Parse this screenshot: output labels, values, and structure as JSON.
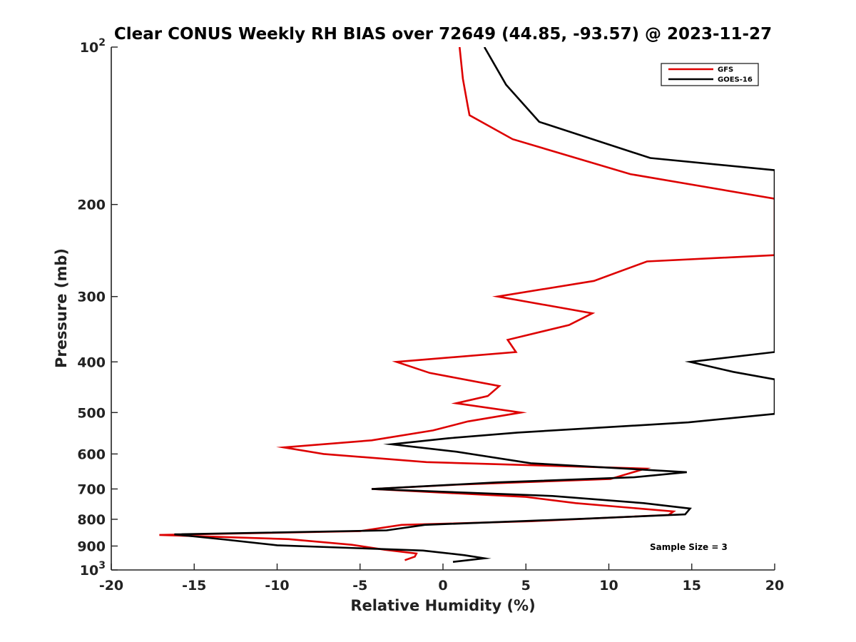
{
  "chart_data": {
    "type": "line",
    "title": "Clear CONUS Weekly RH BIAS over 72649 (44.85, -93.57) @ 2023-11-27",
    "xlabel": "Relative Humidity (%)",
    "ylabel": "Pressure (mb)",
    "xlim": [
      -20,
      20
    ],
    "ylim": [
      100,
      1000
    ],
    "y_scale": "log",
    "y_reversed": true,
    "grid": false,
    "legend_position": "top-right",
    "x_ticks": [
      {
        "value": -20,
        "label": "-20"
      },
      {
        "value": -15,
        "label": "-15"
      },
      {
        "value": -10,
        "label": "-10"
      },
      {
        "value": -5,
        "label": "-5"
      },
      {
        "value": 0,
        "label": "0"
      },
      {
        "value": 5,
        "label": "5"
      },
      {
        "value": 10,
        "label": "10"
      },
      {
        "value": 15,
        "label": "15"
      },
      {
        "value": 20,
        "label": "20"
      }
    ],
    "y_ticks": [
      {
        "value": 100,
        "base": "10",
        "exp": "2"
      },
      {
        "value": 200,
        "base": "200",
        "exp": ""
      },
      {
        "value": 300,
        "base": "300",
        "exp": ""
      },
      {
        "value": 400,
        "base": "400",
        "exp": ""
      },
      {
        "value": 500,
        "base": "500",
        "exp": ""
      },
      {
        "value": 600,
        "base": "600",
        "exp": ""
      },
      {
        "value": 700,
        "base": "700",
        "exp": ""
      },
      {
        "value": 800,
        "base": "800",
        "exp": ""
      },
      {
        "value": 900,
        "base": "900",
        "exp": ""
      },
      {
        "value": 1000,
        "base": "10",
        "exp": "3"
      }
    ],
    "series": [
      {
        "name": "GFS",
        "color": "#dd0000",
        "points": [
          [
            1.0,
            100
          ],
          [
            1.2,
            115
          ],
          [
            1.5,
            130
          ],
          [
            1.6,
            135
          ],
          [
            4.2,
            150
          ],
          [
            11.3,
            175
          ],
          [
            20.0,
            195
          ],
          [
            20.0,
            250
          ],
          [
            12.3,
            257
          ],
          [
            9.1,
            280
          ],
          [
            3.3,
            300
          ],
          [
            9.0,
            323
          ],
          [
            7.6,
            340
          ],
          [
            3.9,
            363
          ],
          [
            4.4,
            383
          ],
          [
            -2.8,
            400
          ],
          [
            -0.8,
            420
          ],
          [
            3.4,
            445
          ],
          [
            2.7,
            465
          ],
          [
            0.8,
            480
          ],
          [
            4.7,
            500
          ],
          [
            1.5,
            520
          ],
          [
            -0.6,
            541
          ],
          [
            -4.3,
            565
          ],
          [
            -9.6,
            583
          ],
          [
            -7.2,
            600
          ],
          [
            -1.0,
            622
          ],
          [
            12.2,
            640
          ],
          [
            10.1,
            670
          ],
          [
            0.8,
            687
          ],
          [
            -4.3,
            700
          ],
          [
            5.0,
            725
          ],
          [
            8.0,
            745
          ],
          [
            13.9,
            773
          ],
          [
            13.6,
            785
          ],
          [
            5.3,
            807
          ],
          [
            -2.5,
            820
          ],
          [
            -5.0,
            843
          ],
          [
            -17.1,
            857
          ],
          [
            -9.3,
            873
          ],
          [
            -5.5,
            895
          ],
          [
            -3.5,
            915
          ],
          [
            -1.6,
            930
          ],
          [
            -1.7,
            943
          ],
          [
            -2.3,
            958
          ]
        ]
      },
      {
        "name": "GOES-16",
        "color": "#000000",
        "points": [
          [
            2.5,
            100
          ],
          [
            3.8,
            118
          ],
          [
            5.8,
            139
          ],
          [
            12.5,
            163
          ],
          [
            20.0,
            172
          ],
          [
            20.0,
            383
          ],
          [
            14.9,
            400
          ],
          [
            17.5,
            418
          ],
          [
            20.0,
            432
          ],
          [
            20.0,
            503
          ],
          [
            14.8,
            522
          ],
          [
            4.5,
            546
          ],
          [
            0.3,
            560
          ],
          [
            -3.1,
            575
          ],
          [
            0.8,
            594
          ],
          [
            5.3,
            625
          ],
          [
            14.7,
            650
          ],
          [
            11.5,
            665
          ],
          [
            3.3,
            680
          ],
          [
            -4.3,
            700
          ],
          [
            6.6,
            722
          ],
          [
            12.1,
            745
          ],
          [
            14.9,
            763
          ],
          [
            14.6,
            783
          ],
          [
            8.5,
            798
          ],
          [
            -1.1,
            820
          ],
          [
            -3.4,
            840
          ],
          [
            -16.2,
            855
          ],
          [
            -13.1,
            875
          ],
          [
            -10.0,
            897
          ],
          [
            -1.2,
            918
          ],
          [
            1.3,
            937
          ],
          [
            2.5,
            950
          ],
          [
            0.6,
            965
          ]
        ]
      }
    ],
    "annotation": "Sample Size = 3"
  }
}
